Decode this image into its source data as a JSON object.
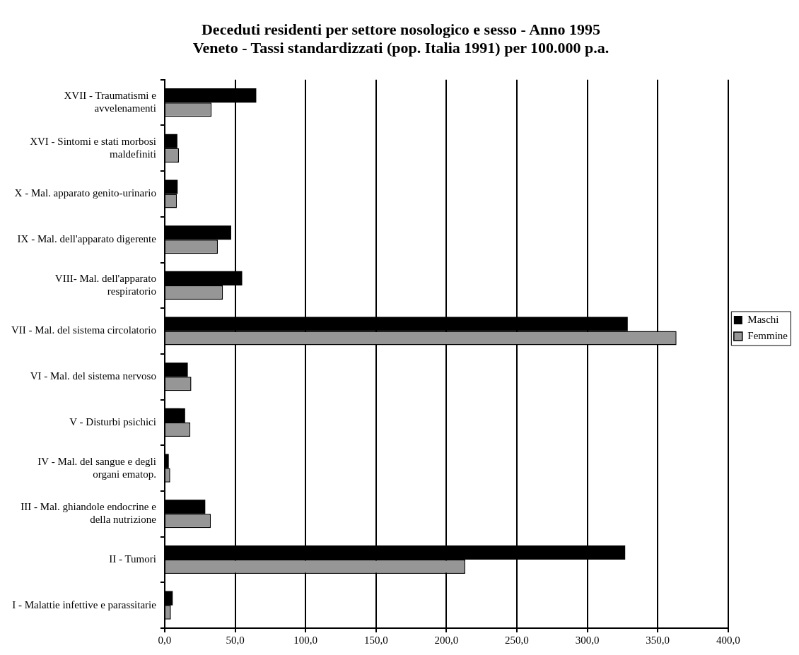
{
  "chart_data": {
    "type": "bar",
    "orientation": "horizontal",
    "title": "Deceduti residenti per settore nosologico e sesso - Anno 1995",
    "subtitle": "Veneto - Tassi standardizzati (pop. Italia 1991) per 100.000 p.a.",
    "categories": [
      "XVII - Traumatismi e avvelenamenti",
      "XVI - Sintomi e stati morbosi maldefiniti",
      "X - Mal. apparato genito-urinario",
      "IX - Mal. dell'apparato digerente",
      "VIII- Mal. dell'apparato respiratorio",
      "VII - Mal. del sistema circolatorio",
      "VI - Mal. del sistema nervoso",
      "V - Disturbi psichici",
      "IV - Mal. del sangue e degli organi ematop.",
      "III - Mal. ghiandole endocrine e della nutrizione",
      "II - Tumori",
      "I - Malattie infettive e parassitarie"
    ],
    "series": [
      {
        "name": "Maschi",
        "color": "#000000",
        "values": [
          65.0,
          9.0,
          9.2,
          47.2,
          55.0,
          328.7,
          16.4,
          14.5,
          2.9,
          28.8,
          326.9,
          5.7
        ]
      },
      {
        "name": "Femmine",
        "color": "#969696",
        "values": [
          33.3,
          10.1,
          8.6,
          37.7,
          41.3,
          363.3,
          18.9,
          18.2,
          3.9,
          32.7,
          213.3,
          4.4
        ]
      }
    ],
    "xlim": [
      0,
      400
    ],
    "xticks": [
      {
        "value": 0,
        "label": "0,0"
      },
      {
        "value": 50,
        "label": "50,0"
      },
      {
        "value": 100,
        "label": "100,0"
      },
      {
        "value": 150,
        "label": "150,0"
      },
      {
        "value": 200,
        "label": "200,0"
      },
      {
        "value": 250,
        "label": "250,0"
      },
      {
        "value": 300,
        "label": "300,0"
      },
      {
        "value": 350,
        "label": "350,0"
      },
      {
        "value": 400,
        "label": "400,0"
      }
    ],
    "grid": "x",
    "legend": "right"
  }
}
